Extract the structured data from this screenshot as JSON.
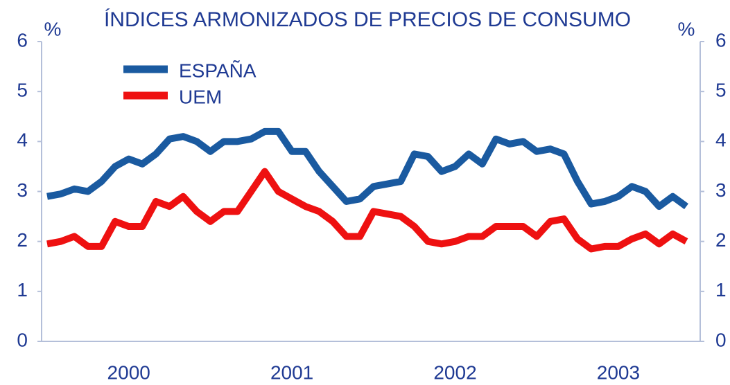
{
  "chart_data": {
    "type": "line",
    "title": "ÍNDICES ARMONIZADOS DE PRECIOS DE CONSUMO",
    "ylabel": "%",
    "y2label": "%",
    "categories": [
      null,
      null,
      null,
      null,
      null,
      null,
      "2000",
      null,
      null,
      null,
      null,
      null,
      null,
      null,
      null,
      null,
      null,
      null,
      "2001",
      null,
      null,
      null,
      null,
      null,
      null,
      null,
      null,
      null,
      null,
      null,
      "2002",
      null,
      null,
      null,
      null,
      null,
      null,
      null,
      null,
      null,
      null,
      null,
      "2003",
      null,
      null,
      null,
      null,
      null
    ],
    "series": [
      {
        "name": "ESPAÑA",
        "color": "#1a5aa0",
        "values": [
          2.9,
          2.95,
          3.05,
          3.0,
          3.2,
          3.5,
          3.65,
          3.55,
          3.75,
          4.05,
          4.1,
          4.0,
          3.8,
          4.0,
          4.0,
          4.05,
          4.2,
          4.2,
          3.8,
          3.8,
          3.4,
          3.1,
          2.8,
          2.85,
          3.1,
          3.15,
          3.2,
          3.75,
          3.7,
          3.4,
          3.5,
          3.75,
          3.55,
          4.05,
          3.95,
          4.0,
          3.8,
          3.85,
          3.75,
          3.2,
          2.75,
          2.8,
          2.9,
          3.1,
          3.0,
          2.7,
          2.9,
          2.7
        ]
      },
      {
        "name": "UEM",
        "color": "#ee1111",
        "values": [
          1.95,
          2.0,
          2.1,
          1.9,
          1.9,
          2.4,
          2.3,
          2.3,
          2.8,
          2.7,
          2.9,
          2.6,
          2.4,
          2.6,
          2.6,
          3.0,
          3.4,
          3.0,
          2.85,
          2.7,
          2.6,
          2.4,
          2.1,
          2.1,
          2.6,
          2.55,
          2.5,
          2.3,
          2.0,
          1.95,
          2.0,
          2.1,
          2.1,
          2.3,
          2.3,
          2.3,
          2.1,
          2.4,
          2.45,
          2.05,
          1.85,
          1.9,
          1.9,
          2.05,
          2.15,
          1.95,
          2.15,
          2.0
        ]
      }
    ],
    "ylim": [
      0,
      6
    ],
    "yticks": [
      0,
      1,
      2,
      3,
      4,
      5,
      6
    ],
    "y2lim": [
      0,
      6
    ],
    "y2ticks": [
      0,
      1,
      2,
      3,
      4,
      5,
      6
    ],
    "legend": "upper left"
  }
}
